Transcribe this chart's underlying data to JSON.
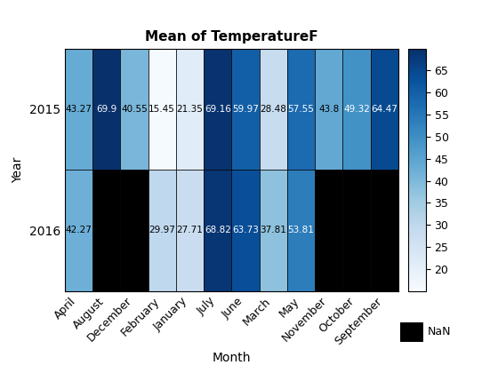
{
  "title": "Mean of TemperatureF",
  "xlabel": "Month",
  "ylabel": "Year",
  "months": [
    "April",
    "August",
    "December",
    "February",
    "January",
    "July",
    "June",
    "March",
    "May",
    "November",
    "October",
    "September"
  ],
  "years": [
    "2015",
    "2016"
  ],
  "values": [
    [
      43.27,
      69.9,
      40.55,
      15.45,
      21.35,
      69.16,
      59.97,
      28.48,
      57.55,
      43.8,
      49.32,
      64.47
    ],
    [
      42.27,
      null,
      null,
      29.97,
      27.71,
      68.82,
      63.73,
      37.81,
      53.81,
      null,
      null,
      null
    ]
  ],
  "vmin": 15,
  "vmax": 70,
  "colorbar_ticks": [
    20,
    25,
    30,
    35,
    40,
    45,
    50,
    55,
    60,
    65
  ],
  "nan_color": "#000000",
  "cmap": "Blues",
  "title_fontsize": 11,
  "axis_label_fontsize": 10,
  "tick_fontsize": 9,
  "cell_text_fontsize": 7.5
}
